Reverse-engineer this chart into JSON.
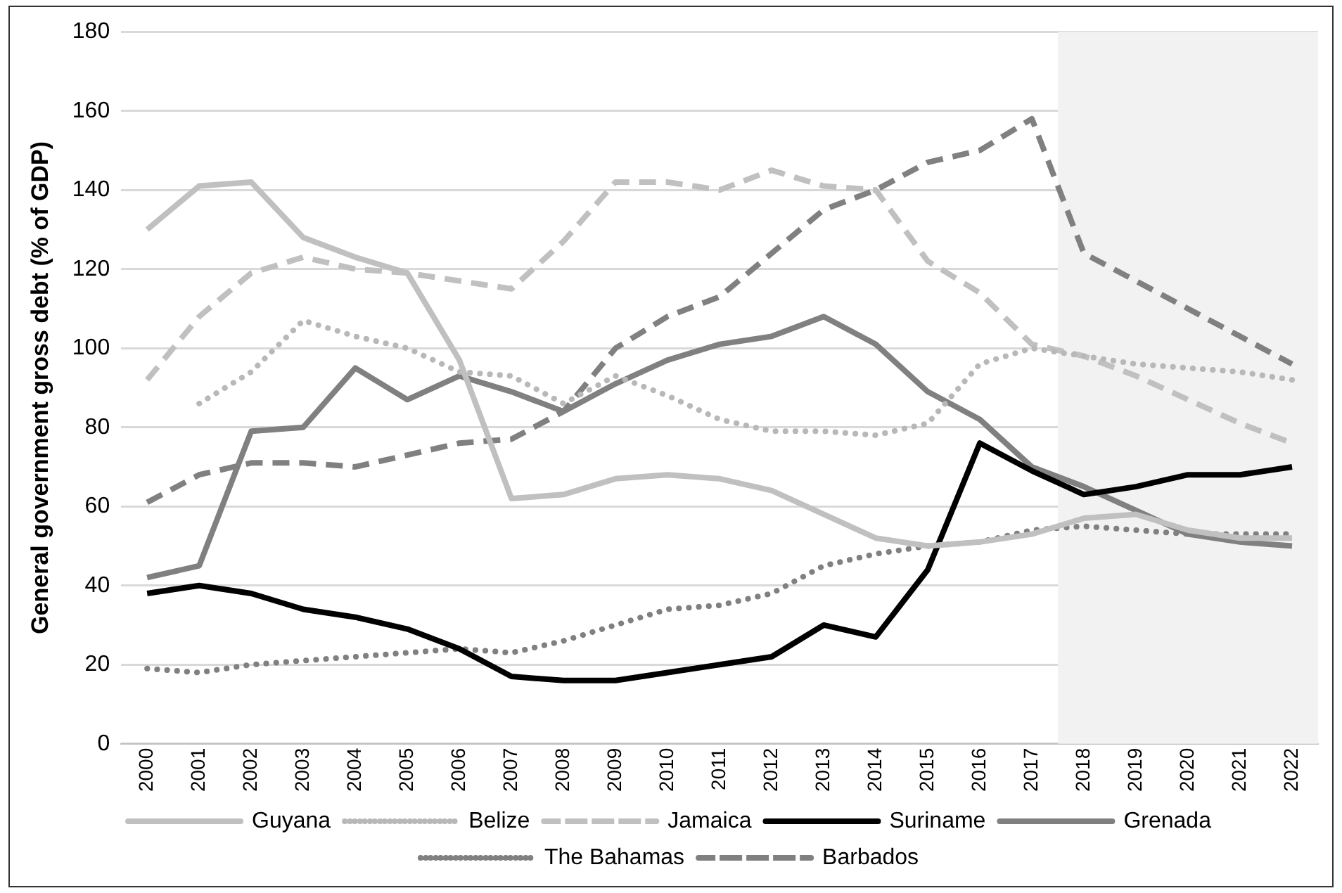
{
  "chart_data": {
    "type": "line",
    "ylabel": "General government gross debt (% of GDP)",
    "categories": [
      "2000",
      "2001",
      "2002",
      "2003",
      "2004",
      "2005",
      "2006",
      "2007",
      "2008",
      "2009",
      "2010",
      "2011",
      "2012",
      "2013",
      "2014",
      "2015",
      "2016",
      "2017",
      "2018",
      "2019",
      "2020",
      "2021",
      "2022"
    ],
    "series": [
      {
        "name": "Guyana",
        "color": "#c0c0c0",
        "line_style": "solid",
        "values": [
          130,
          141,
          142,
          128,
          123,
          119,
          97,
          62,
          63,
          67,
          68,
          67,
          64,
          58,
          52,
          50,
          51,
          53,
          57,
          58,
          54,
          52,
          52
        ]
      },
      {
        "name": "Belize",
        "color": "#b8b8b8",
        "line_style": "dotted",
        "values": [
          null,
          86,
          94,
          107,
          103,
          100,
          94,
          93,
          86,
          93,
          88,
          82,
          79,
          79,
          78,
          81,
          96,
          100,
          98,
          96,
          95,
          94,
          92
        ]
      },
      {
        "name": "Jamaica",
        "color": "#c0c0c0",
        "line_style": "dashed",
        "values": [
          92,
          108,
          119,
          123,
          120,
          119,
          117,
          115,
          127,
          142,
          142,
          140,
          145,
          141,
          140,
          122,
          114,
          101,
          98,
          93,
          87,
          81,
          76
        ]
      },
      {
        "name": "Suriname",
        "color": "#000000",
        "line_style": "solid",
        "values": [
          38,
          40,
          38,
          34,
          32,
          29,
          24,
          17,
          16,
          16,
          18,
          20,
          22,
          30,
          27,
          44,
          76,
          69,
          63,
          65,
          68,
          68,
          70
        ]
      },
      {
        "name": "Grenada",
        "color": "#808080",
        "line_style": "solid",
        "values": [
          42,
          45,
          79,
          80,
          95,
          87,
          93,
          89,
          84,
          91,
          97,
          101,
          103,
          108,
          101,
          89,
          82,
          70,
          65,
          59,
          53,
          51,
          50
        ]
      },
      {
        "name": "The Bahamas",
        "color": "#808080",
        "line_style": "dotted",
        "values": [
          19,
          18,
          20,
          21,
          22,
          23,
          24,
          23,
          26,
          30,
          34,
          35,
          38,
          45,
          48,
          50,
          51,
          54,
          55,
          54,
          53,
          53,
          53
        ]
      },
      {
        "name": "Barbados",
        "color": "#808080",
        "line_style": "dashed",
        "values": [
          61,
          68,
          71,
          71,
          70,
          73,
          76,
          77,
          84,
          100,
          108,
          113,
          124,
          135,
          140,
          147,
          150,
          158,
          124,
          117,
          110,
          103,
          96
        ]
      }
    ],
    "ylim": [
      0,
      180
    ],
    "yticks": [
      0,
      20,
      40,
      60,
      80,
      100,
      120,
      140,
      160,
      180
    ],
    "bands": [
      {
        "axis": "x",
        "from": "2018",
        "to": "2022",
        "color": "#f2f2f2"
      }
    ],
    "grid": "y",
    "legend": "bottom",
    "marker": "none"
  }
}
